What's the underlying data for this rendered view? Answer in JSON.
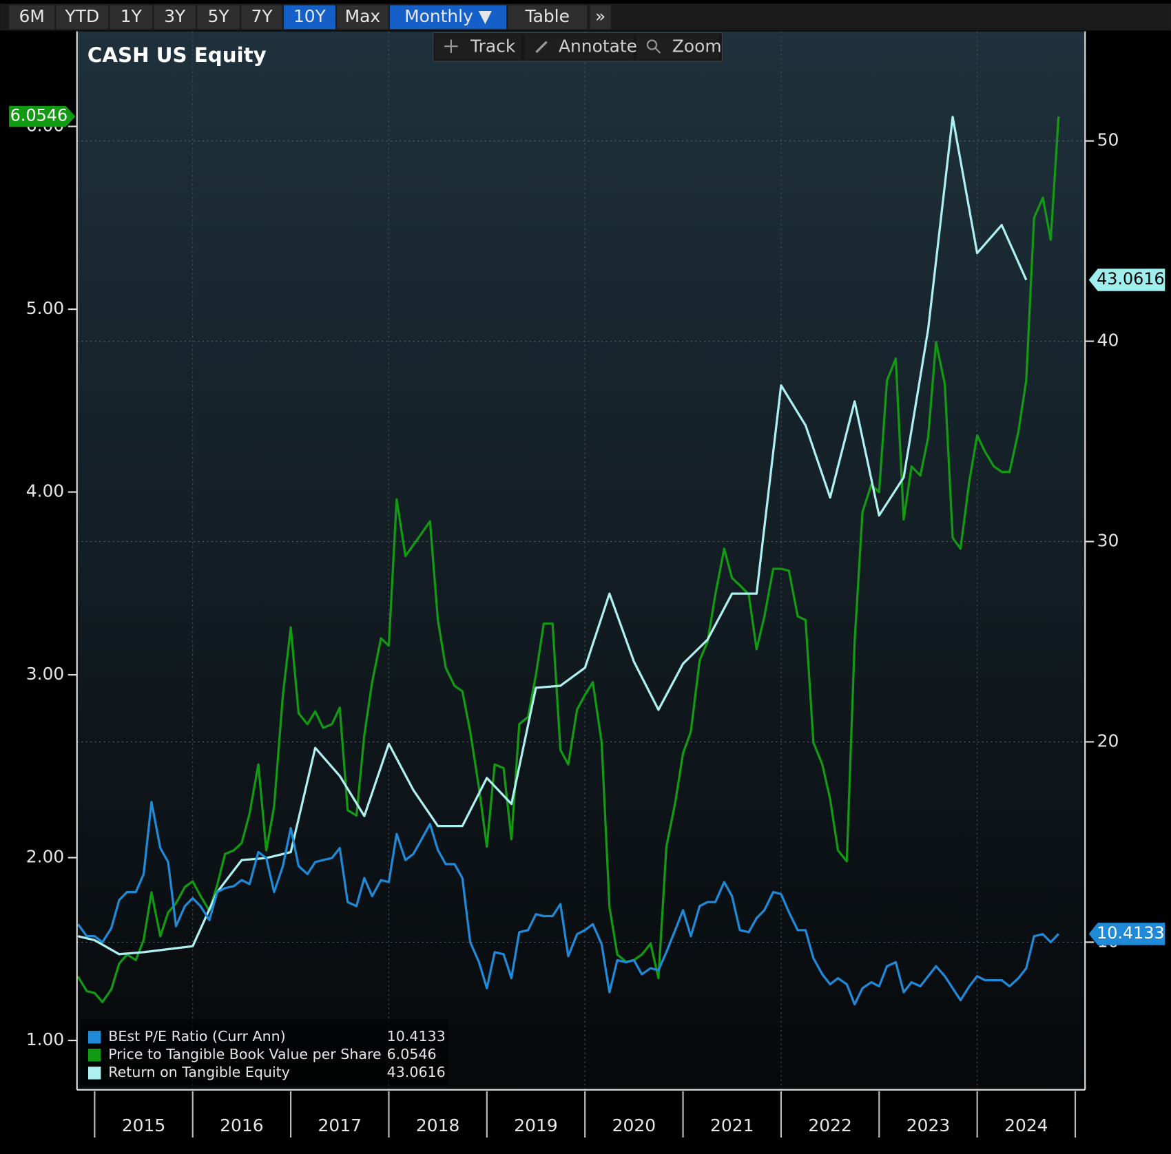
{
  "toolbar": {
    "buttons": [
      {
        "label": "6M",
        "active": false
      },
      {
        "label": "YTD",
        "active": false
      },
      {
        "label": "1Y",
        "active": false
      },
      {
        "label": "3Y",
        "active": false
      },
      {
        "label": "5Y",
        "active": false
      },
      {
        "label": "7Y",
        "active": false
      },
      {
        "label": "10Y",
        "active": true
      },
      {
        "label": "Max",
        "active": false
      },
      {
        "label": "Monthly ▼",
        "active": true
      },
      {
        "label": "Table",
        "active": false
      },
      {
        "label": "»",
        "active": false
      }
    ],
    "chart_tools": [
      "Track",
      "Annotate",
      "Zoom"
    ]
  },
  "chart_data": {
    "type": "line",
    "title": "CASH US Equity",
    "x": [
      2014.83,
      2014.92,
      2015,
      2015.08,
      2015.17,
      2015.25,
      2015.33,
      2015.42,
      2015.5,
      2015.58,
      2015.67,
      2015.75,
      2015.83,
      2015.92,
      2016,
      2016.08,
      2016.17,
      2016.25,
      2016.33,
      2016.42,
      2016.5,
      2016.58,
      2016.67,
      2016.75,
      2016.83,
      2016.92,
      2017,
      2017.08,
      2017.17,
      2017.25,
      2017.33,
      2017.42,
      2017.5,
      2017.58,
      2017.67,
      2017.75,
      2017.83,
      2017.92,
      2018,
      2018.08,
      2018.17,
      2018.25,
      2018.33,
      2018.42,
      2018.5,
      2018.58,
      2018.67,
      2018.75,
      2018.83,
      2018.92,
      2019,
      2019.08,
      2019.17,
      2019.25,
      2019.33,
      2019.42,
      2019.5,
      2019.58,
      2019.67,
      2019.75,
      2019.83,
      2019.92,
      2020,
      2020.08,
      2020.17,
      2020.25,
      2020.33,
      2020.42,
      2020.5,
      2020.58,
      2020.67,
      2020.75,
      2020.83,
      2020.92,
      2021,
      2021.08,
      2021.17,
      2021.25,
      2021.33,
      2021.42,
      2021.5,
      2021.58,
      2021.67,
      2021.75,
      2021.83,
      2021.92,
      2022,
      2022.08,
      2022.17,
      2022.25,
      2022.33,
      2022.42,
      2022.5,
      2022.58,
      2022.67,
      2022.75,
      2022.83,
      2022.92,
      2023,
      2023.08,
      2023.17,
      2023.25,
      2023.33,
      2023.42,
      2023.5,
      2023.58,
      2023.67,
      2023.75,
      2023.83,
      2023.92,
      2024,
      2024.08,
      2024.17,
      2024.25,
      2024.33,
      2024.42,
      2024.5,
      2024.58,
      2024.67,
      2024.75,
      2024.83
    ],
    "series": [
      {
        "name": "BEst P/E Ratio (Curr Ann)",
        "color": "#1f8ad8",
        "axis": "y2",
        "values": [
          10.9,
          10.3,
          10.3,
          10.0,
          10.7,
          12.1,
          12.5,
          12.5,
          13.4,
          17.0,
          14.7,
          14.0,
          10.8,
          11.8,
          12.2,
          11.8,
          11.1,
          12.5,
          12.7,
          12.8,
          13.1,
          12.9,
          14.5,
          14.2,
          12.5,
          13.8,
          15.7,
          13.8,
          13.4,
          14.0,
          14.1,
          14.2,
          14.7,
          12.0,
          11.8,
          13.2,
          12.3,
          13.1,
          13.0,
          15.4,
          14.1,
          14.4,
          15.1,
          15.9,
          14.6,
          13.9,
          13.9,
          13.2,
          10.0,
          9.0,
          7.7,
          9.5,
          9.4,
          8.2,
          10.5,
          10.6,
          11.4,
          11.3,
          11.3,
          11.9,
          9.3,
          10.4,
          10.6,
          10.9,
          9.9,
          7.5,
          9.1,
          9.0,
          9.1,
          8.4,
          8.7,
          8.6,
          9.5,
          10.6,
          11.6,
          10.3,
          11.8,
          12.0,
          12.0,
          13.0,
          12.3,
          10.6,
          10.5,
          11.2,
          11.6,
          12.5,
          12.4,
          11.5,
          10.6,
          10.6,
          9.2,
          8.4,
          7.9,
          8.2,
          7.9,
          6.9,
          7.7,
          8.0,
          7.8,
          8.8,
          9.0,
          7.5,
          8.0,
          7.8,
          8.3,
          8.8,
          8.3,
          7.7,
          7.1,
          7.8,
          8.3,
          8.1,
          8.1,
          8.1,
          7.8,
          8.2,
          8.7,
          10.3,
          10.4,
          10.0,
          10.4133
        ]
      },
      {
        "name": "Price to Tangible Book Value per Share",
        "color": "#139a13",
        "axis": "y",
        "values": [
          1.35,
          1.27,
          1.26,
          1.21,
          1.28,
          1.42,
          1.47,
          1.44,
          1.55,
          1.81,
          1.57,
          1.7,
          1.75,
          1.84,
          1.87,
          1.79,
          1.71,
          1.85,
          2.02,
          2.04,
          2.08,
          2.24,
          2.51,
          2.04,
          2.28,
          2.89,
          3.26,
          2.79,
          2.73,
          2.8,
          2.71,
          2.73,
          2.82,
          2.26,
          2.23,
          2.67,
          2.96,
          3.2,
          3.16,
          3.96,
          3.65,
          3.71,
          3.77,
          3.84,
          3.3,
          3.04,
          2.94,
          2.91,
          2.69,
          2.38,
          2.06,
          2.51,
          2.49,
          2.1,
          2.73,
          2.77,
          3.0,
          3.28,
          3.28,
          2.59,
          2.51,
          2.81,
          2.89,
          2.96,
          2.63,
          1.73,
          1.47,
          1.43,
          1.44,
          1.47,
          1.53,
          1.34,
          2.06,
          2.3,
          2.57,
          2.69,
          3.08,
          3.18,
          3.44,
          3.69,
          3.53,
          3.49,
          3.44,
          3.14,
          3.32,
          3.58,
          3.58,
          3.57,
          3.32,
          3.3,
          2.63,
          2.51,
          2.32,
          2.04,
          1.98,
          3.18,
          3.89,
          4.04,
          4.0,
          4.61,
          4.73,
          3.85,
          4.14,
          4.09,
          4.3,
          4.82,
          4.59,
          3.75,
          3.69,
          4.06,
          4.31,
          4.22,
          4.14,
          4.11,
          4.11,
          4.33,
          4.61,
          5.5,
          5.61,
          5.38,
          6.0546
        ]
      },
      {
        "name": "Return on Tangible Equity",
        "color": "#aef0f0",
        "axis": "y2",
        "x": [
          2014.83,
          2015,
          2015.25,
          2015.5,
          2015.83,
          2016,
          2016.25,
          2016.5,
          2016.75,
          2017,
          2017.25,
          2017.5,
          2017.75,
          2018,
          2018.25,
          2018.5,
          2018.75,
          2019,
          2019.25,
          2019.5,
          2019.75,
          2020,
          2020.25,
          2020.5,
          2020.75,
          2021,
          2021.25,
          2021.5,
          2021.75,
          2022,
          2022.25,
          2022.5,
          2022.75,
          2023,
          2023.25,
          2023.5,
          2023.75,
          2024,
          2024.25,
          2024.5
        ],
        "values": [
          10.3,
          10.1,
          9.4,
          9.5,
          9.7,
          9.8,
          12.5,
          14.1,
          14.2,
          14.5,
          19.7,
          18.3,
          16.3,
          19.9,
          17.6,
          15.8,
          15.8,
          18.2,
          16.9,
          22.7,
          22.8,
          23.7,
          27.4,
          24.0,
          21.6,
          23.9,
          25.1,
          27.4,
          27.4,
          37.8,
          35.8,
          32.2,
          37.0,
          31.3,
          33.2,
          40.6,
          51.2,
          44.4,
          45.8,
          43.0616
        ]
      }
    ],
    "xlim": [
      2014.82,
      2025.1
    ],
    "xticks": [
      2015,
      2016,
      2017,
      2018,
      2019,
      2020,
      2021,
      2022,
      2023,
      2024,
      2025
    ],
    "xtick_labels": [
      {
        "value": 2015.5,
        "label": "2015"
      },
      {
        "value": 2016.5,
        "label": "2016"
      },
      {
        "value": 2017.5,
        "label": "2017"
      },
      {
        "value": 2018.5,
        "label": "2018"
      },
      {
        "value": 2019.5,
        "label": "2019"
      },
      {
        "value": 2020.5,
        "label": "2020"
      },
      {
        "value": 2021.5,
        "label": "2021"
      },
      {
        "value": 2022.5,
        "label": "2022"
      },
      {
        "value": 2023.5,
        "label": "2023"
      },
      {
        "value": 2024.5,
        "label": "2024"
      }
    ],
    "ylim": [
      0.73,
      6.52
    ],
    "yticks": [
      {
        "value": 1,
        "label": "1.00"
      },
      {
        "value": 2,
        "label": "2.00"
      },
      {
        "value": 3,
        "label": "3.00"
      },
      {
        "value": 4,
        "label": "4.00"
      },
      {
        "value": 5,
        "label": "5.00"
      },
      {
        "value": 6,
        "label": "6.00"
      }
    ],
    "y2lim": [
      2.63,
      55.47
    ],
    "y2ticks": [
      10,
      20,
      30,
      40,
      50
    ],
    "grid": true,
    "legend": "bottom-left"
  }
}
